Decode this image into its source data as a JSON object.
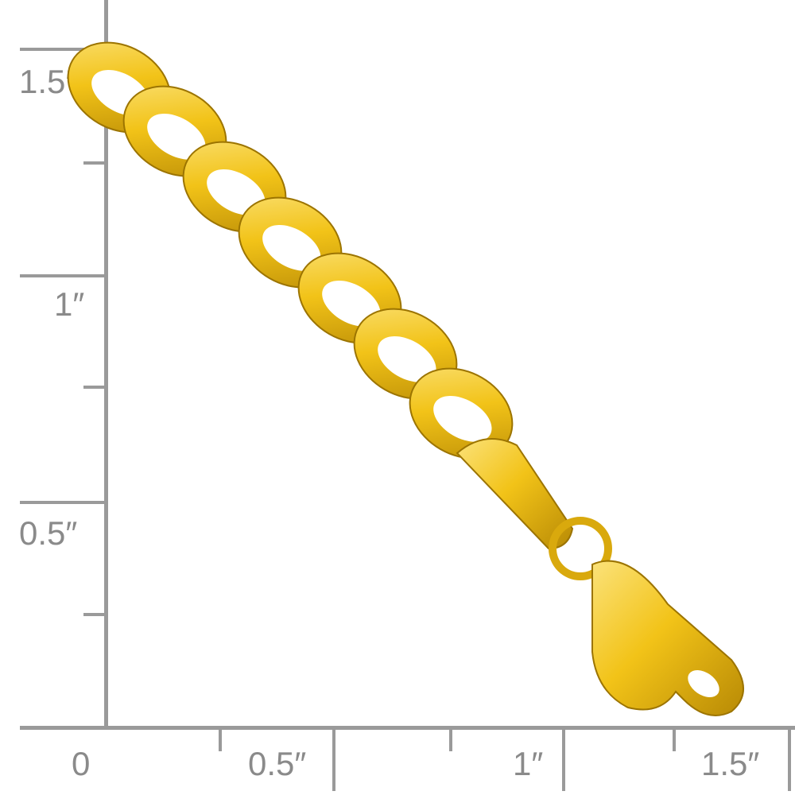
{
  "ruler": {
    "unit_symbol": "″",
    "vertical_labels": [
      "1.5″",
      "1″",
      "0.5″"
    ],
    "horizontal_labels": [
      "0",
      "0.5″",
      "1″",
      "1.5″"
    ],
    "color": "#9a9a9a"
  },
  "product": {
    "type": "curb-chain-bracelet",
    "material_color": "#f2c318",
    "clasp": "lobster-clasp"
  }
}
